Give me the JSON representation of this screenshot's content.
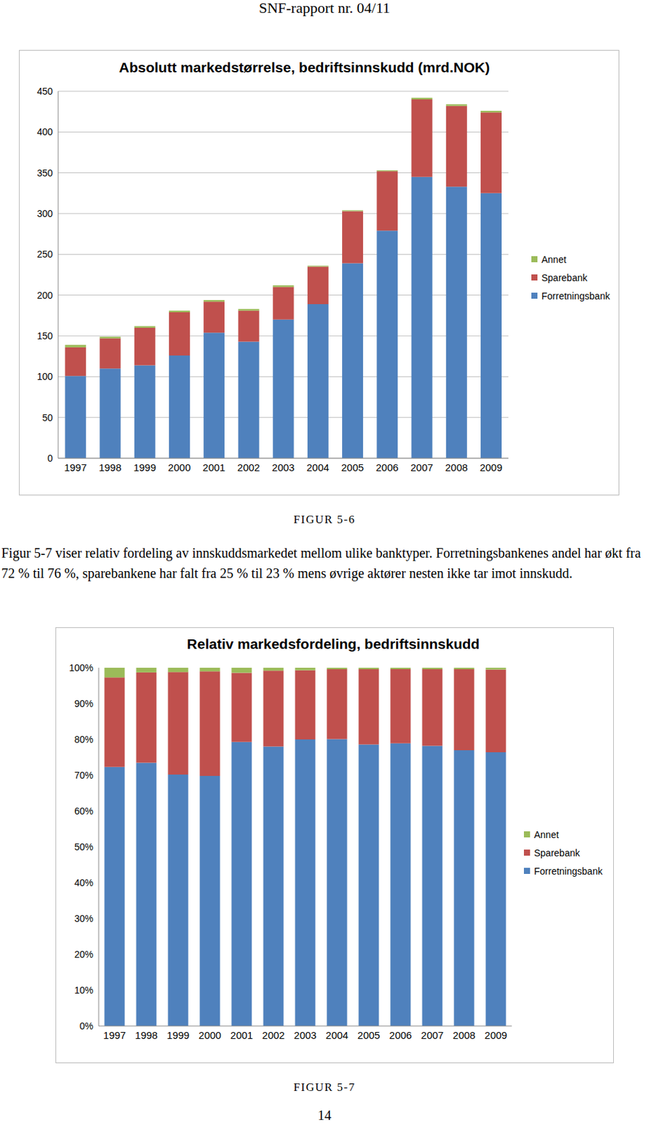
{
  "page": {
    "header": "SNF-rapport nr. 04/11",
    "paragraph": "Figur 5-7 viser relativ fordeling av innskuddsmarkedet mellom ulike banktyper. Forretningsbankenes andel har økt fra 72 % til 76 %, sparebankene har falt fra 25 % til 23 % mens øvrige aktører nesten ikke tar imot innskudd.",
    "captions": [
      "FIGUR 5-6",
      "FIGUR 5-7"
    ],
    "page_number": "14"
  },
  "chart_data": [
    {
      "type": "bar",
      "title": "Absolutt markedstørrelse, bedriftsinnskudd  (mrd.NOK)",
      "categories": [
        "1997",
        "1998",
        "1999",
        "2000",
        "2001",
        "2002",
        "2003",
        "2004",
        "2005",
        "2006",
        "2007",
        "2008",
        "2009"
      ],
      "series": [
        {
          "name": "Forretningsbank",
          "color": "#4f81bd",
          "values": [
            101,
            110,
            114,
            126,
            154,
            143,
            170,
            189,
            239,
            279,
            345,
            333,
            325
          ]
        },
        {
          "name": "Sparebank",
          "color": "#c0504d",
          "values": [
            35,
            37,
            46,
            53,
            38,
            38,
            40,
            46,
            64,
            73,
            95,
            99,
            99
          ]
        },
        {
          "name": "Annet",
          "color": "#9bbb59",
          "values": [
            3,
            2,
            2,
            2,
            2,
            2,
            2,
            1,
            1,
            1,
            2,
            2,
            2
          ]
        }
      ],
      "stacked": true,
      "ylim": [
        0,
        450
      ],
      "yticks": [
        0,
        50,
        100,
        150,
        200,
        250,
        300,
        350,
        400,
        450
      ],
      "grid": true,
      "legend": "right"
    },
    {
      "type": "bar",
      "title": "Relativ markedsfordeling, bedriftsinnskudd",
      "categories": [
        "1997",
        "1998",
        "1999",
        "2000",
        "2001",
        "2002",
        "2003",
        "2004",
        "2005",
        "2006",
        "2007",
        "2008",
        "2009"
      ],
      "series": [
        {
          "name": "Forretningsbank",
          "color": "#4f81bd",
          "values": [
            72.3,
            73.5,
            70.2,
            69.8,
            79.3,
            78,
            80,
            80.1,
            78.6,
            78.9,
            78.2,
            77,
            76.4
          ]
        },
        {
          "name": "Sparebank",
          "color": "#c0504d",
          "values": [
            25,
            25.2,
            28.6,
            29.2,
            19.3,
            21.2,
            19.3,
            19.5,
            21,
            20.7,
            21.4,
            22.6,
            23.1
          ]
        },
        {
          "name": "Annet",
          "color": "#9bbb59",
          "values": [
            2.7,
            1.3,
            1.2,
            1,
            1.4,
            0.8,
            0.7,
            0.4,
            0.4,
            0.4,
            0.4,
            0.4,
            0.5
          ]
        }
      ],
      "stacked": true,
      "ylim": [
        0,
        100
      ],
      "yticks": [
        {
          "value": 0,
          "label": "0%"
        },
        {
          "value": 10,
          "label": "10%"
        },
        {
          "value": 20,
          "label": "20%"
        },
        {
          "value": 30,
          "label": "30%"
        },
        {
          "value": 40,
          "label": "40%"
        },
        {
          "value": 50,
          "label": "50%"
        },
        {
          "value": 60,
          "label": "60%"
        },
        {
          "value": 70,
          "label": "70%"
        },
        {
          "value": 80,
          "label": "80%"
        },
        {
          "value": 90,
          "label": "90%"
        },
        {
          "value": 100,
          "label": "100%"
        }
      ],
      "grid": false,
      "legend": "right"
    }
  ]
}
